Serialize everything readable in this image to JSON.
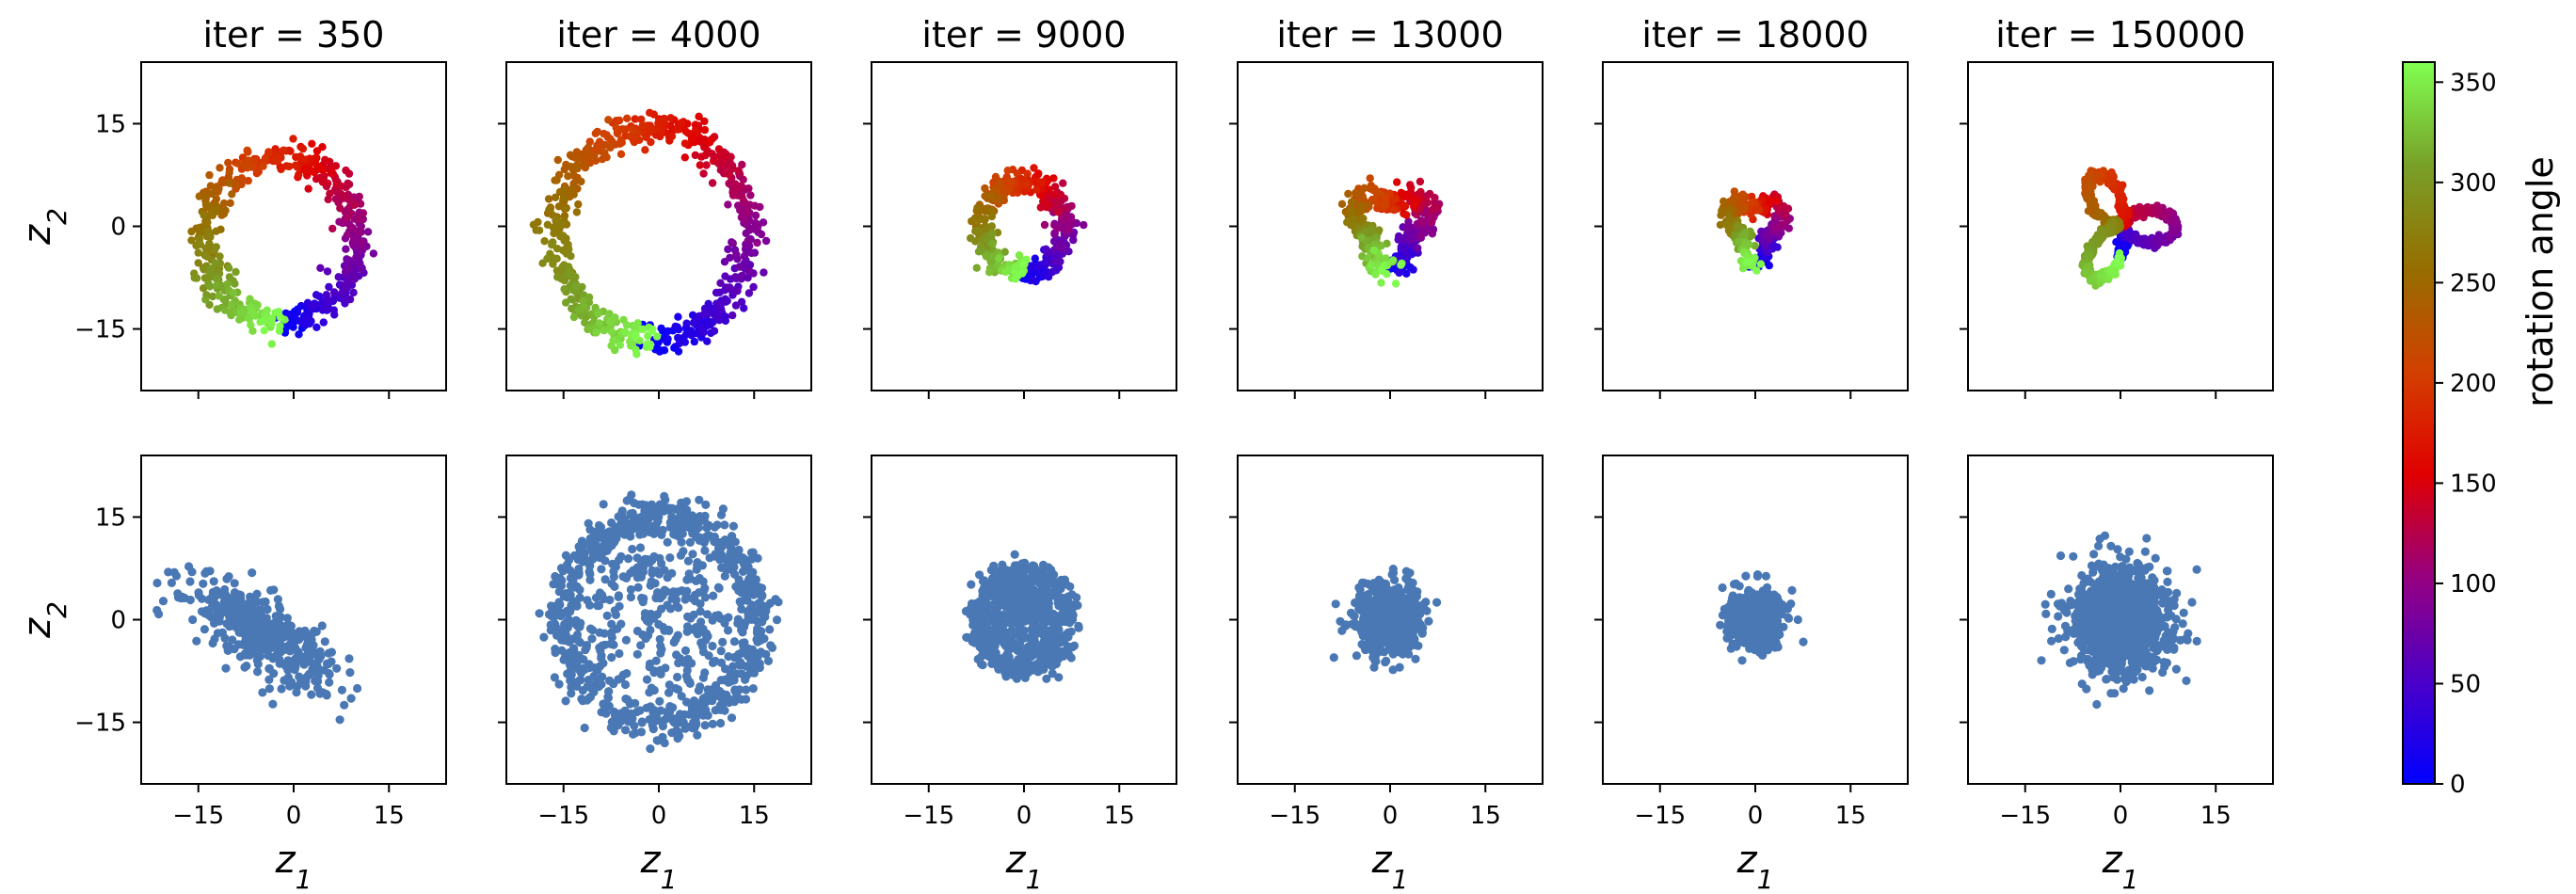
{
  "figure": {
    "top_titles": [
      "iter = 350",
      "iter = 4000",
      "iter = 9000",
      "iter = 13000",
      "iter = 18000",
      "iter = 150000"
    ],
    "xlabel": {
      "base": "z",
      "sub": "1"
    },
    "ylabel": {
      "base": "z",
      "sub": "2"
    },
    "colorbar": {
      "label": "rotation angle",
      "range": [
        0,
        360
      ],
      "ticks": [
        0,
        50,
        100,
        150,
        200,
        250,
        300,
        350
      ],
      "colormap": [
        "#0000ff",
        "#4b00c8",
        "#960080",
        "#e00000",
        "#d24000",
        "#966e00",
        "#78a028",
        "#80ff50"
      ]
    },
    "point_color_bottom": "#4a78b4"
  },
  "chart_data": [
    {
      "type": "scatter",
      "title": "iter = 350",
      "row": "top",
      "color_by": "rotation angle",
      "xlim": [
        -24,
        24
      ],
      "ylim": [
        -24,
        24
      ],
      "xticks": [
        -15,
        0,
        15
      ],
      "yticks": [
        -15,
        0,
        15
      ],
      "shape": {
        "kind": "ring",
        "cx": -2,
        "cy": -2,
        "rx": 12,
        "ry": 12,
        "angle_offset": 270,
        "thickness": 1.2
      },
      "n_points": 520
    },
    {
      "type": "scatter",
      "title": "iter = 4000",
      "row": "top",
      "color_by": "rotation angle",
      "xlim": [
        -24,
        24
      ],
      "ylim": [
        -24,
        24
      ],
      "xticks": [
        -15,
        0,
        15
      ],
      "yticks": [
        -15,
        0,
        15
      ],
      "shape": {
        "kind": "ring",
        "cx": -1,
        "cy": -1,
        "rx": 15,
        "ry": 15.5,
        "angle_offset": 270,
        "thickness": 1.2
      },
      "n_points": 620
    },
    {
      "type": "scatter",
      "title": "iter = 9000",
      "row": "top",
      "color_by": "rotation angle",
      "xlim": [
        -24,
        24
      ],
      "ylim": [
        -24,
        24
      ],
      "xticks": [
        -15,
        0,
        15
      ],
      "yticks": [
        -15,
        0,
        15
      ],
      "shape": {
        "kind": "ring",
        "cx": 0,
        "cy": 0,
        "rx": 6.5,
        "ry": 6.5,
        "angle_offset": 270,
        "thickness": 0.9
      },
      "n_points": 420
    },
    {
      "type": "scatter",
      "title": "iter = 13000",
      "row": "top",
      "color_by": "rotation angle",
      "xlim": [
        -24,
        24
      ],
      "ylim": [
        -24,
        24
      ],
      "xticks": [
        -15,
        0,
        15
      ],
      "yticks": [
        -15,
        0,
        15
      ],
      "shape": {
        "kind": "ring",
        "cx": 0,
        "cy": 0,
        "rx": 5,
        "ry": 5,
        "angle_offset": 270,
        "thickness": 0.9,
        "lobes": 3,
        "lobe_amp": 1.6
      },
      "n_points": 380
    },
    {
      "type": "scatter",
      "title": "iter = 18000",
      "row": "top",
      "color_by": "rotation angle",
      "xlim": [
        -24,
        24
      ],
      "ylim": [
        -24,
        24
      ],
      "xticks": [
        -15,
        0,
        15
      ],
      "yticks": [
        -15,
        0,
        15
      ],
      "shape": {
        "kind": "ring",
        "cx": 0,
        "cy": 0,
        "rx": 3.5,
        "ry": 4,
        "angle_offset": 270,
        "thickness": 0.7,
        "lobes": 3,
        "lobe_amp": 1.2
      },
      "n_points": 340
    },
    {
      "type": "scatter",
      "title": "iter = 150000",
      "row": "top",
      "color_by": "rotation angle",
      "xlim": [
        -24,
        24
      ],
      "ylim": [
        -24,
        24
      ],
      "xticks": [
        -15,
        0,
        15
      ],
      "yticks": [
        -15,
        0,
        15
      ],
      "shape": {
        "kind": "trefoil",
        "cx": 0,
        "cy": 0,
        "r": 4.5,
        "amp": 4.0,
        "angle_offset": 270,
        "thickness": 0.35
      },
      "n_points": 900
    },
    {
      "type": "scatter",
      "title": "",
      "row": "bottom",
      "xlim": [
        -24,
        24
      ],
      "ylim": [
        -24,
        24
      ],
      "xticks": [
        -15,
        0,
        15
      ],
      "yticks": [
        -15,
        0,
        15
      ],
      "shape": {
        "kind": "blob",
        "cx": -5,
        "cy": -2,
        "sx": 6.5,
        "sy": 2.3,
        "rotation": -30
      },
      "n_points": 420
    },
    {
      "type": "scatter",
      "title": "",
      "row": "bottom",
      "xlim": [
        -24,
        24
      ],
      "ylim": [
        -24,
        24
      ],
      "xticks": [
        -15,
        0,
        15
      ],
      "yticks": [
        -15,
        0,
        15
      ],
      "shape": {
        "kind": "ring_disk",
        "cx": 0,
        "cy": 0,
        "ring_r": 15,
        "ring_sd": 1.6,
        "disk_r": 11,
        "ring_fraction": 0.78
      },
      "n_points": 950
    },
    {
      "type": "scatter",
      "title": "",
      "row": "bottom",
      "xlim": [
        -24,
        24
      ],
      "ylim": [
        -24,
        24
      ],
      "xticks": [
        -15,
        0,
        15
      ],
      "yticks": [
        -15,
        0,
        15
      ],
      "shape": {
        "kind": "ring_disk",
        "cx": 0,
        "cy": 0,
        "ring_r": 7,
        "ring_sd": 1.2,
        "disk_r": 5,
        "ring_fraction": 0.7
      },
      "n_points": 650
    },
    {
      "type": "scatter",
      "title": "",
      "row": "bottom",
      "xlim": [
        -24,
        24
      ],
      "ylim": [
        -24,
        24
      ],
      "xticks": [
        -15,
        0,
        15
      ],
      "yticks": [
        -15,
        0,
        15
      ],
      "shape": {
        "kind": "blob",
        "cx": 0,
        "cy": 0,
        "sx": 2.5,
        "sy": 2.5,
        "rotation": 0
      },
      "n_points": 650
    },
    {
      "type": "scatter",
      "title": "",
      "row": "bottom",
      "xlim": [
        -24,
        24
      ],
      "ylim": [
        -24,
        24
      ],
      "xticks": [
        -15,
        0,
        15
      ],
      "yticks": [
        -15,
        0,
        15
      ],
      "shape": {
        "kind": "blob",
        "cx": 0,
        "cy": 0,
        "sx": 2.0,
        "sy": 2.0,
        "rotation": 0
      },
      "n_points": 600
    },
    {
      "type": "scatter",
      "title": "",
      "row": "bottom",
      "xlim": [
        -24,
        24
      ],
      "ylim": [
        -24,
        24
      ],
      "xticks": [
        -15,
        0,
        15
      ],
      "yticks": [
        -15,
        0,
        15
      ],
      "shape": {
        "kind": "blob",
        "cx": 0,
        "cy": 0,
        "sx": 3.8,
        "sy": 3.8,
        "rotation": 0
      },
      "n_points": 1100
    }
  ]
}
